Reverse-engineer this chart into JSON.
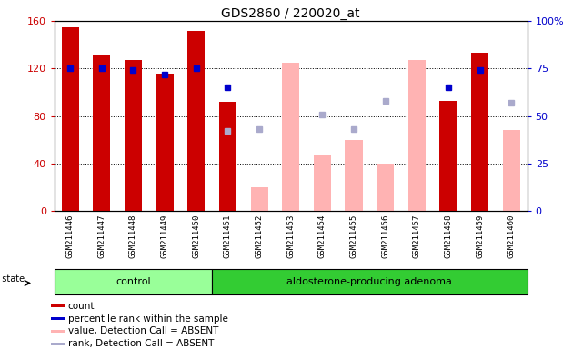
{
  "title": "GDS2860 / 220020_at",
  "samples": [
    "GSM211446",
    "GSM211447",
    "GSM211448",
    "GSM211449",
    "GSM211450",
    "GSM211451",
    "GSM211452",
    "GSM211453",
    "GSM211454",
    "GSM211455",
    "GSM211456",
    "GSM211457",
    "GSM211458",
    "GSM211459",
    "GSM211460"
  ],
  "groups": [
    "control",
    "control",
    "control",
    "control",
    "control",
    "aldosterone-producing adenoma",
    "aldosterone-producing adenoma",
    "aldosterone-producing adenoma",
    "aldosterone-producing adenoma",
    "aldosterone-producing adenoma",
    "aldosterone-producing adenoma",
    "aldosterone-producing adenoma",
    "aldosterone-producing adenoma",
    "aldosterone-producing adenoma",
    "aldosterone-producing adenoma"
  ],
  "count_present": [
    155,
    132,
    127,
    116,
    152,
    92,
    null,
    null,
    null,
    null,
    null,
    null,
    93,
    133,
    null
  ],
  "count_absent_value": [
    null,
    null,
    null,
    null,
    null,
    null,
    20,
    125,
    47,
    60,
    40,
    127,
    null,
    null,
    68
  ],
  "percentile_present": [
    75,
    75,
    74,
    72,
    75,
    65,
    null,
    null,
    null,
    null,
    null,
    null,
    65,
    74,
    null
  ],
  "percentile_absent_rank": [
    null,
    null,
    null,
    null,
    null,
    42,
    43,
    null,
    51,
    43,
    58,
    null,
    null,
    null,
    57
  ],
  "ylim_left": [
    0,
    160
  ],
  "ylim_right": [
    0,
    100
  ],
  "yticks_left": [
    0,
    40,
    80,
    120,
    160
  ],
  "yticks_right": [
    0,
    25,
    50,
    75,
    100
  ],
  "color_count_present": "#cc0000",
  "color_count_absent": "#ffb3b3",
  "color_pct_present": "#0000cc",
  "color_pct_absent": "#aaaacc",
  "bar_width": 0.55,
  "group_colors": {
    "control": "#99ff99",
    "aldosterone-producing adenoma": "#33cc33"
  },
  "group_label_bg": "#cccccc",
  "plot_bg": "#ffffff",
  "legend_items": [
    [
      "#cc0000",
      "count"
    ],
    [
      "#0000cc",
      "percentile rank within the sample"
    ],
    [
      "#ffb3b3",
      "value, Detection Call = ABSENT"
    ],
    [
      "#aaaacc",
      "rank, Detection Call = ABSENT"
    ]
  ]
}
